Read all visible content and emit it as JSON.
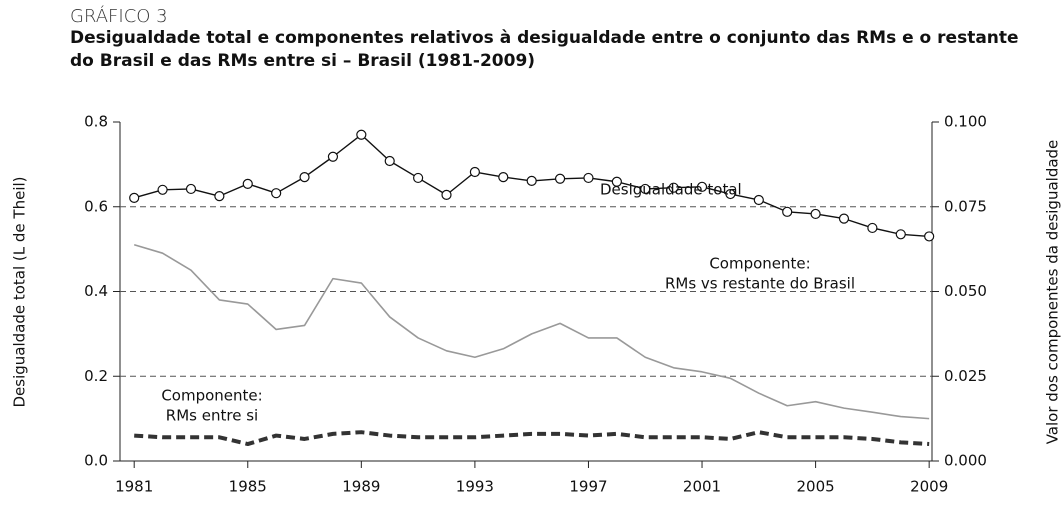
{
  "chart_data": {
    "type": "line",
    "kicker": "GRÁFICO 3",
    "title": [
      "Desigualdade total e componentes relativos à desigualdade entre o conjunto das RMs e o restante",
      "do Brasil e das RMs entre si – Brasil (1981-2009)"
    ],
    "ylabel": "Desigualdade total (L de Theil)",
    "y2label": "Valor dos componentes da desigualdade",
    "x": [
      1981,
      1982,
      1983,
      1984,
      1985,
      1986,
      1987,
      1988,
      1989,
      1990,
      1991,
      1992,
      1993,
      1994,
      1995,
      1996,
      1997,
      1998,
      1999,
      2000,
      2001,
      2002,
      2003,
      2004,
      2005,
      2006,
      2007,
      2008,
      2009
    ],
    "xlim": [
      1980.5,
      2009.1
    ],
    "xticks": [
      1981,
      1985,
      1989,
      1993,
      1997,
      2001,
      2005,
      2009
    ],
    "ylim": [
      0,
      0.8
    ],
    "yticks": [
      {
        "value": 0,
        "label": "0.0"
      },
      0.2,
      0.4,
      0.6,
      0.8
    ],
    "y2lim": [
      0,
      0.1
    ],
    "y2ticks": [
      {
        "value": 0,
        "label": "0.000"
      },
      0.025,
      {
        "value": 0.05,
        "label": "0.050"
      },
      0.075,
      {
        "value": 0.1,
        "label": "0.100"
      }
    ],
    "grid": true,
    "series": [
      {
        "name": "Desigualdade total",
        "color": "#111111",
        "style": "markers",
        "values": [
          0.621,
          0.64,
          0.642,
          0.625,
          0.654,
          0.632,
          0.67,
          0.718,
          0.77,
          0.708,
          0.668,
          0.628,
          0.682,
          0.67,
          0.661,
          0.666,
          0.668,
          0.659,
          0.642,
          0.645,
          0.647,
          0.63,
          0.616,
          0.588,
          0.583,
          0.572,
          0.55,
          0.535,
          0.53
        ]
      },
      {
        "name": "RMs vs restante do Brasil",
        "label": "Componente:",
        "color": "#999999",
        "style": "solid",
        "axis": "y2",
        "values": [
          0.0638,
          0.0613,
          0.0563,
          0.0475,
          0.0463,
          0.0388,
          0.04,
          0.0538,
          0.0525,
          0.0425,
          0.0363,
          0.0325,
          0.0306,
          0.0331,
          0.0375,
          0.0406,
          0.0363,
          0.0363,
          0.0306,
          0.0275,
          0.0263,
          0.0244,
          0.02,
          0.0163,
          0.0175,
          0.0156,
          0.0144,
          0.0131,
          0.0125
        ]
      },
      {
        "name": "RMs entre si",
        "label": "Componente:",
        "color": "#333333",
        "style": "dashed",
        "axis": "y2",
        "values": [
          0.0075,
          0.007,
          0.007,
          0.007,
          0.005,
          0.0075,
          0.0065,
          0.008,
          0.0085,
          0.0075,
          0.007,
          0.007,
          0.007,
          0.0075,
          0.008,
          0.008,
          0.0075,
          0.008,
          0.007,
          0.007,
          0.007,
          0.0065,
          0.0085,
          0.007,
          0.007,
          0.007,
          0.0065,
          0.0055,
          0.005
        ]
      }
    ]
  }
}
